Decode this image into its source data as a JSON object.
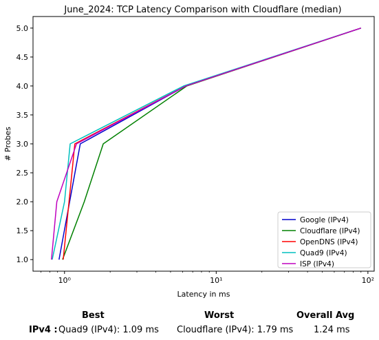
{
  "chart_data": {
    "type": "line",
    "title": "June_2024: TCP Latency Comparison with Cloudflare (median)",
    "xlabel": "Latency in ms",
    "ylabel": "# Probes",
    "xscale": "log",
    "xlim": [
      0.62,
      110
    ],
    "ylim": [
      0.8,
      5.2
    ],
    "x_ticks": [
      1,
      10,
      100
    ],
    "x_tick_labels": [
      "10⁰",
      "10¹",
      "10²"
    ],
    "y_ticks": [
      1.0,
      1.5,
      2.0,
      2.5,
      3.0,
      3.5,
      4.0,
      4.5,
      5.0
    ],
    "y_tick_labels": [
      "1.0",
      "1.5",
      "2.0",
      "2.5",
      "3.0",
      "3.5",
      "4.0",
      "4.5",
      "5.0"
    ],
    "grid": false,
    "legend_position": "lower-right",
    "series": [
      {
        "name": "Google (IPv4)",
        "color": "#0000cc",
        "x": [
          0.92,
          1.27,
          6.3,
          90
        ],
        "y": [
          1,
          3,
          4,
          5
        ]
      },
      {
        "name": "Cloudflare (IPv4)",
        "color": "#008000",
        "x": [
          0.97,
          1.35,
          1.8,
          6.4,
          90
        ],
        "y": [
          1,
          2,
          3,
          4,
          5
        ]
      },
      {
        "name": "OpenDNS (IPv4)",
        "color": "#ff0000",
        "x": [
          0.98,
          1.17,
          6.3,
          90
        ],
        "y": [
          1,
          3,
          4,
          5
        ]
      },
      {
        "name": "Quad9 (IPv4)",
        "color": "#00bfbf",
        "x": [
          0.83,
          1.0,
          1.09,
          6.1,
          90
        ],
        "y": [
          1,
          2,
          3,
          4,
          5
        ]
      },
      {
        "name": "ISP (IPv4)",
        "color": "#bf00bf",
        "x": [
          0.82,
          0.89,
          1.2,
          6.3,
          90
        ],
        "y": [
          1,
          2,
          3,
          4,
          5
        ]
      }
    ]
  },
  "summary": {
    "best_label": "Best",
    "worst_label": "Worst",
    "avg_label": "Overall Avg",
    "row_label": "IPv4 :",
    "best_value": "Quad9 (IPv4): 1.09 ms",
    "worst_value": "Cloudflare (IPv4): 1.79 ms",
    "avg_value": "1.24 ms"
  }
}
